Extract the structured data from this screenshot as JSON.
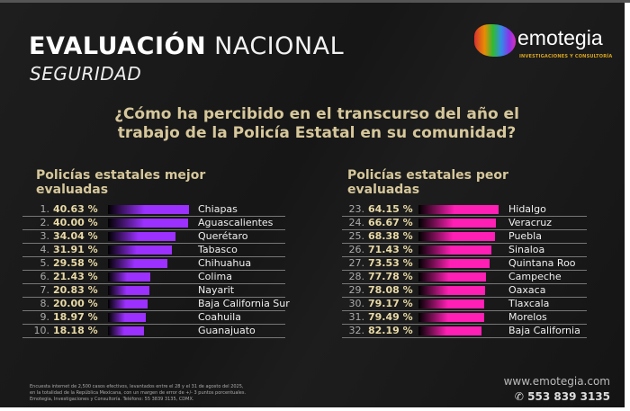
{
  "header": {
    "title_bold": "EVALUACIÓN",
    "title_light": "NACIONAL",
    "subtitle": "SEGURIDAD"
  },
  "logo": {
    "name": "emotegia",
    "tagline": "INVESTIGACIONES Y CONSULTORÍA"
  },
  "question": [
    "¿Cómo ha percibido en el transcurso del año el",
    "trabajo de la Policía Estatal en su comunidad?"
  ],
  "best": {
    "title": [
      "Policías estatales mejor",
      "evaluadas"
    ],
    "color": "#9b30ff",
    "rows": [
      {
        "rank": "1.",
        "pct": "40.63 %",
        "value": 40.63,
        "state": "Chiapas"
      },
      {
        "rank": "2.",
        "pct": "40.00 %",
        "value": 40.0,
        "state": "Aguascalientes"
      },
      {
        "rank": "3.",
        "pct": "34.04 %",
        "value": 34.04,
        "state": "Querétaro"
      },
      {
        "rank": "4.",
        "pct": "31.91 %",
        "value": 31.91,
        "state": "Tabasco"
      },
      {
        "rank": "5.",
        "pct": "29.58 %",
        "value": 29.58,
        "state": "Chihuahua"
      },
      {
        "rank": "6.",
        "pct": "21.43 %",
        "value": 21.43,
        "state": "Colima"
      },
      {
        "rank": "7.",
        "pct": "20.83 %",
        "value": 20.83,
        "state": "Nayarit"
      },
      {
        "rank": "8.",
        "pct": "20.00 %",
        "value": 20.0,
        "state": "Baja California Sur"
      },
      {
        "rank": "9.",
        "pct": "18.97 %",
        "value": 18.97,
        "state": "Coahuila"
      },
      {
        "rank": "10.",
        "pct": "18.18 %",
        "value": 18.18,
        "state": "Guanajuato"
      }
    ]
  },
  "worst": {
    "title": [
      "Policías estatales peor",
      "evaluadas"
    ],
    "color": "#ff1fb4",
    "rows": [
      {
        "rank": "23.",
        "pct": "64.15 %",
        "value": 64.15,
        "state": "Hidalgo"
      },
      {
        "rank": "24.",
        "pct": "66.67 %",
        "value": 66.67,
        "state": "Veracruz"
      },
      {
        "rank": "25.",
        "pct": "68.38 %",
        "value": 68.38,
        "state": "Puebla"
      },
      {
        "rank": "26.",
        "pct": "71.43 %",
        "value": 71.43,
        "state": "Sinaloa"
      },
      {
        "rank": "27.",
        "pct": "73.53 %",
        "value": 73.53,
        "state": "Quintana Roo"
      },
      {
        "rank": "28.",
        "pct": "77.78 %",
        "value": 77.78,
        "state": "Campeche"
      },
      {
        "rank": "29.",
        "pct": "78.08 %",
        "value": 78.08,
        "state": "Oaxaca"
      },
      {
        "rank": "30.",
        "pct": "79.17 %",
        "value": 79.17,
        "state": "Tlaxcala"
      },
      {
        "rank": "31.",
        "pct": "79.49 %",
        "value": 79.49,
        "state": "Morelos"
      },
      {
        "rank": "32.",
        "pct": "82.19 %",
        "value": 82.19,
        "state": "Baja California"
      }
    ]
  },
  "footer": {
    "note": [
      "Encuesta internet de 2,500 casos efectivos, levantados entre el 28 y el 31 de agosto del 2025,",
      "en la totalidad de la República Mexicana, con un margen de error de +/- 3 puntos porcentuales.",
      "Emotegia, Investigaciones y Consultoría. Teléfono: 55 3839 3135, CDMX."
    ],
    "website": "www.emotegia.com",
    "phone": "553 839 3135"
  }
}
